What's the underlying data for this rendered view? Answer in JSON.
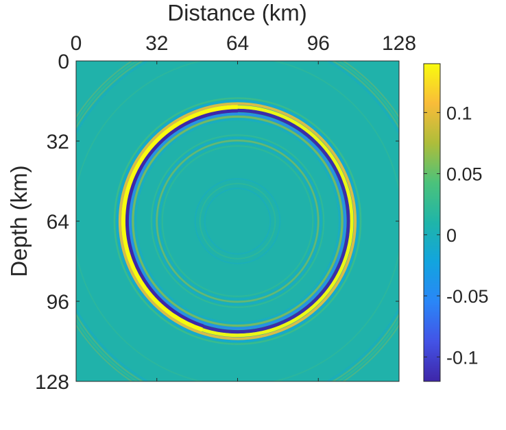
{
  "chart_data": {
    "type": "heatmap",
    "title": "",
    "xlabel": "Distance (km)",
    "ylabel": "Depth (km)",
    "x_axis_position": "top",
    "xlim": [
      0,
      128
    ],
    "ylim": [
      0,
      128
    ],
    "y_reversed": true,
    "x_ticks": [
      0,
      32,
      64,
      96,
      128
    ],
    "y_ticks": [
      0,
      32,
      64,
      96,
      128
    ],
    "x_tick_labels": [
      "0",
      "32",
      "64",
      "96",
      "128"
    ],
    "y_tick_labels": [
      "0",
      "32",
      "64",
      "96",
      "128"
    ],
    "colormap": "parula",
    "clim": [
      -0.12,
      0.14
    ],
    "colorbar": {
      "position": "right",
      "ticks": [
        0.1,
        0.05,
        0,
        -0.05,
        -0.1
      ],
      "tick_labels": [
        "0.1",
        "0.05",
        "0",
        "-0.05",
        "-0.1"
      ]
    },
    "wavefield": {
      "description_values": "circular wavefront rings",
      "center_x_km": 64,
      "center_z_km": 64,
      "main_ring_radius_km": 45,
      "main_ring_peak_amplitude": 0.14,
      "main_ring_trough_amplitude": -0.12,
      "inner_ring_radius_km": 32,
      "inner_ring_amplitude": 0.03,
      "small_ring_radius_km": 13,
      "small_ring_amplitude": 0.012
    },
    "colors": {
      "background_zero": "#20b2aa",
      "peak": "#f9fb0e",
      "trough": "#3e26a8"
    }
  }
}
